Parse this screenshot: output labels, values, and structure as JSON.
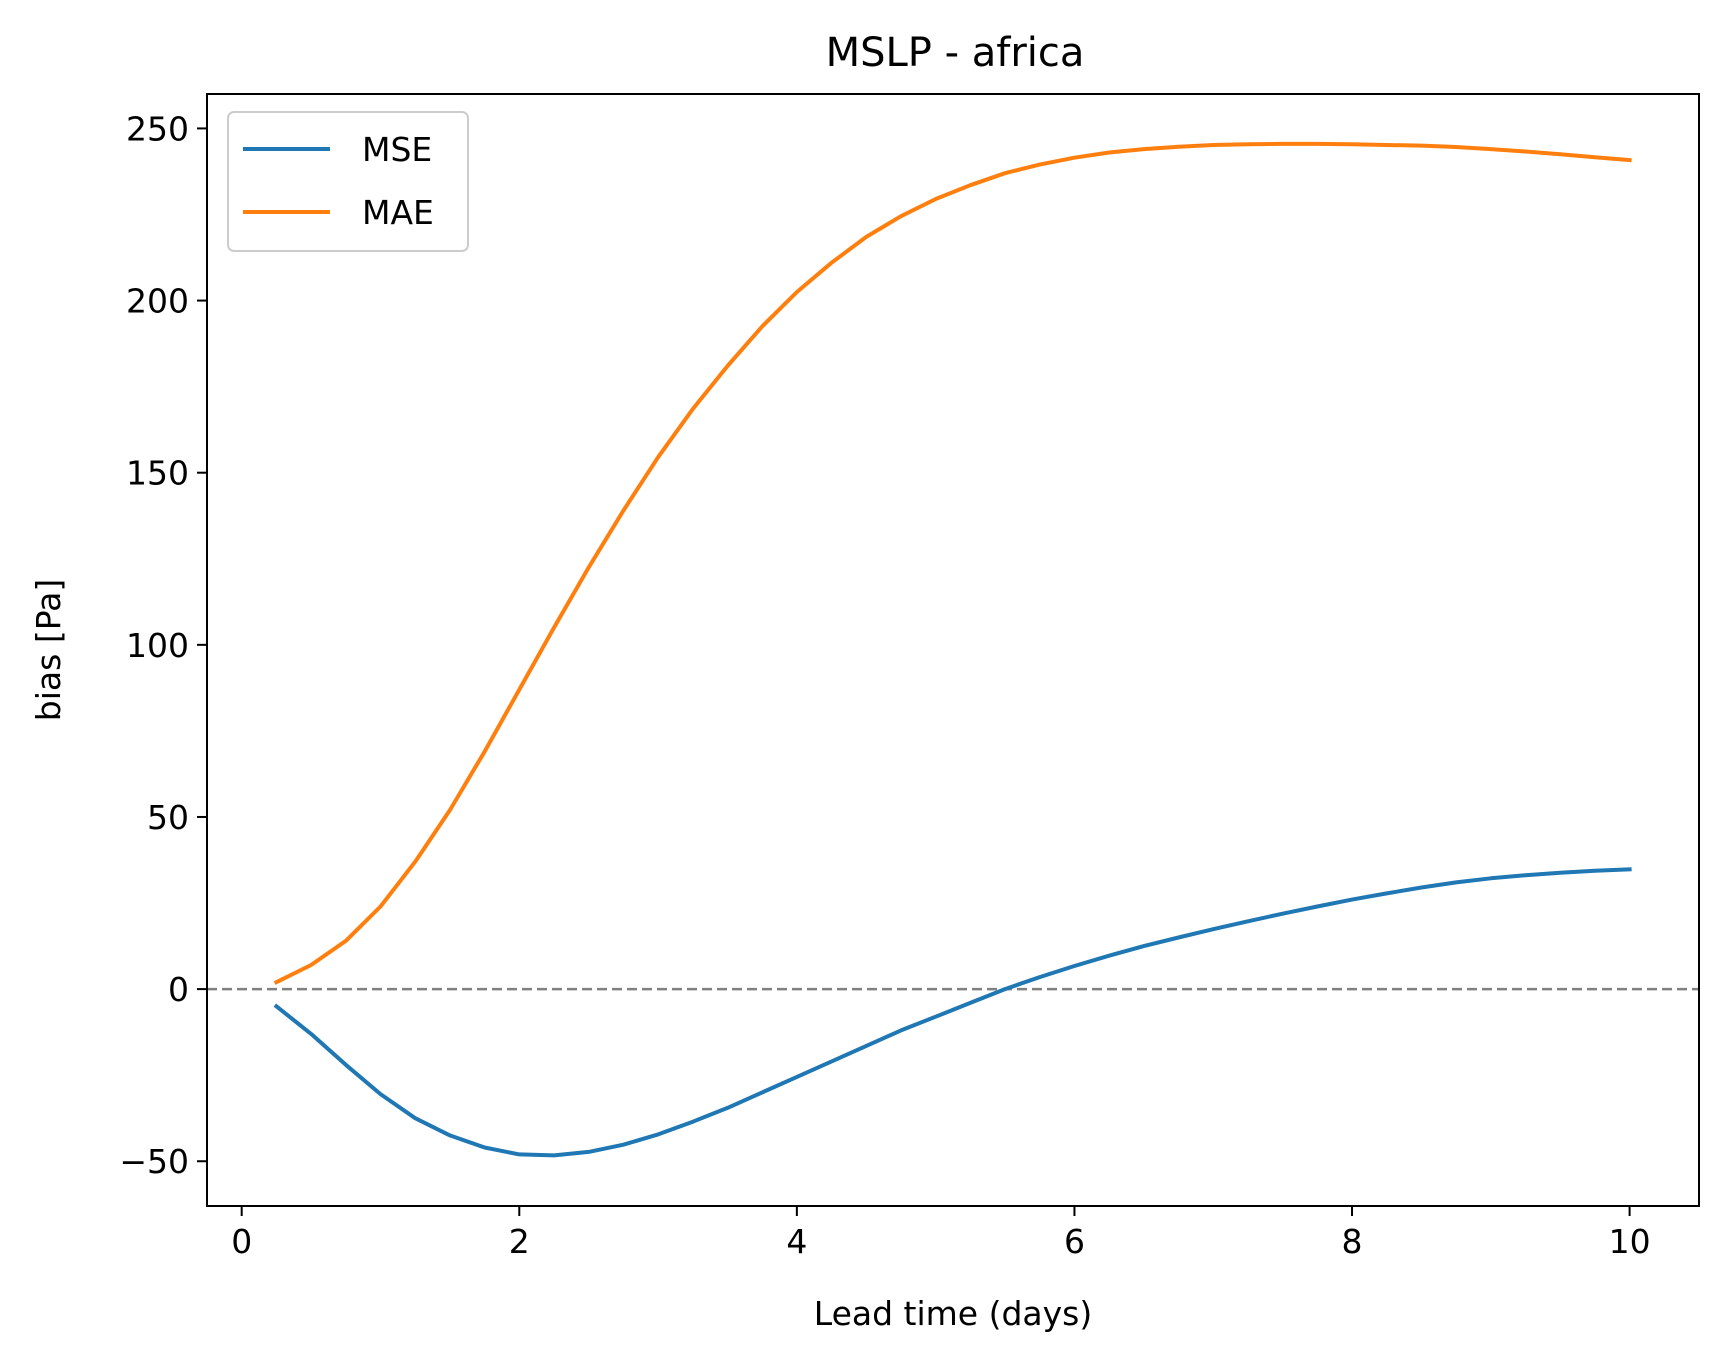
{
  "chart_data": {
    "type": "line",
    "title": "MSLP - africa",
    "xlabel": "Lead time (days)",
    "ylabel": "bias [Pa]",
    "xlim": [
      -0.25,
      10.5
    ],
    "ylim": [
      -63,
      260
    ],
    "xticks": [
      0,
      2,
      4,
      6,
      8,
      10
    ],
    "xtick_labels": [
      "0",
      "2",
      "4",
      "6",
      "8",
      "10"
    ],
    "yticks": [
      -50,
      0,
      50,
      100,
      150,
      200,
      250
    ],
    "ytick_labels": [
      "−50",
      "0",
      "50",
      "100",
      "150",
      "200",
      "250"
    ],
    "grid": false,
    "legend_position": "top-left",
    "reference_line": {
      "y": 0,
      "style": "dashed",
      "color": "#808080"
    },
    "x": [
      0.25,
      0.5,
      0.75,
      1.0,
      1.25,
      1.5,
      1.75,
      2.0,
      2.25,
      2.5,
      2.75,
      3.0,
      3.25,
      3.5,
      3.75,
      4.0,
      4.25,
      4.5,
      4.75,
      5.0,
      5.25,
      5.5,
      5.75,
      6.0,
      6.25,
      6.5,
      6.75,
      7.0,
      7.25,
      7.5,
      7.75,
      8.0,
      8.25,
      8.5,
      8.75,
      9.0,
      9.25,
      9.5,
      9.75,
      10.0
    ],
    "series": [
      {
        "name": "MSE",
        "color": "#1f77b4",
        "values": [
          -5,
          -13,
          -22,
          -30.5,
          -37.5,
          -42.5,
          -46,
          -48,
          -48.3,
          -47.3,
          -45.2,
          -42.2,
          -38.5,
          -34.5,
          -30,
          -25.5,
          -21,
          -16.5,
          -12,
          -8,
          -4,
          0,
          3.5,
          6.7,
          9.7,
          12.5,
          15,
          17.4,
          19.7,
          21.9,
          24,
          26,
          27.8,
          29.5,
          31,
          32.2,
          33.1,
          33.8,
          34.4,
          34.8
        ]
      },
      {
        "name": "MAE",
        "color": "#ff7f0e",
        "values": [
          2,
          7,
          14,
          24,
          37,
          52,
          69,
          87,
          105,
          122.5,
          139,
          154.5,
          168.5,
          181,
          192.5,
          202.5,
          211,
          218.5,
          224.5,
          229.5,
          233.5,
          237,
          239.5,
          241.5,
          243,
          244,
          244.7,
          245.2,
          245.4,
          245.5,
          245.5,
          245.4,
          245.2,
          245,
          244.6,
          244,
          243.3,
          242.5,
          241.6,
          240.8
        ]
      }
    ]
  }
}
